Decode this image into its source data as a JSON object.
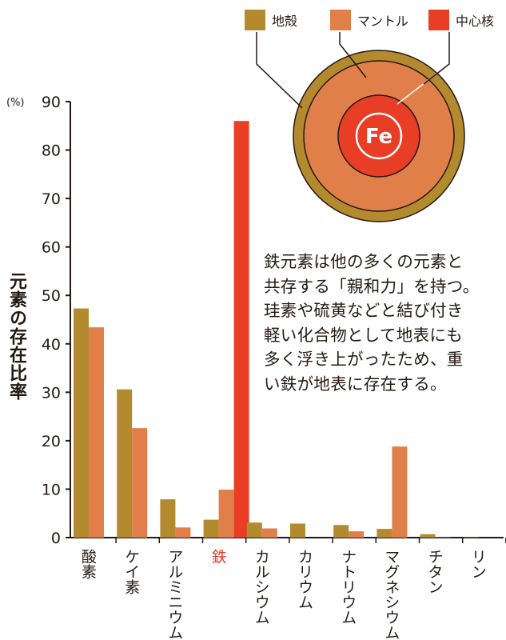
{
  "chart_data": {
    "type": "bar",
    "ylabel": "元素の存在比率",
    "yunit": "(%)",
    "ylim": [
      0,
      90
    ],
    "yticks": [
      0,
      10,
      20,
      30,
      40,
      50,
      60,
      70,
      80,
      90
    ],
    "categories": [
      "酸素",
      "ケイ素",
      "アルミニウム",
      "鉄",
      "カルシウム",
      "カリウム",
      "ナトリウム",
      "マグネシウム",
      "チタン",
      "リン"
    ],
    "highlight_category": "鉄",
    "highlight_color": "#e83828",
    "series": [
      {
        "name": "地殻",
        "color": "#b38a2e",
        "values": [
          47.3,
          30.6,
          7.9,
          3.7,
          3.1,
          2.9,
          2.6,
          1.8,
          0.7,
          0.1
        ]
      },
      {
        "name": "マントル",
        "color": "#e17f4a",
        "values": [
          43.4,
          22.6,
          2.1,
          9.9,
          1.9,
          0.0,
          1.3,
          18.8,
          0.1,
          0.0
        ]
      },
      {
        "name": "中心核",
        "color": "#e83e26",
        "values": [
          0,
          0,
          0,
          86.0,
          0,
          0,
          0,
          0,
          0,
          0
        ]
      }
    ]
  },
  "diagram": {
    "core_label": "Fe",
    "crust_color": "#b38a2e",
    "mantle_color": "#e17f4a",
    "core_color": "#e83e26"
  },
  "note_lines": [
    "鉄元素は他の多くの元素と",
    "共存する「親和力」を持つ。",
    "珪素や硫黄などと結び付き",
    "軽い化合物として地表にも",
    "多く浮き上がったため、重",
    "い鉄が地表に存在する。"
  ]
}
